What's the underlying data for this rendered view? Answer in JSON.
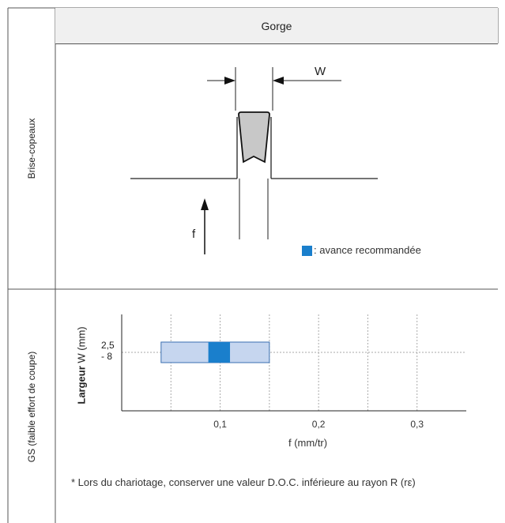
{
  "header": {
    "title": "Gorge"
  },
  "rows": [
    {
      "label": "Brise-copeaux"
    },
    {
      "label": "GS (faible effort de coupe)"
    }
  ],
  "diagram": {
    "width_label": "W",
    "feed_label": "f",
    "legend_text": ": avance recommandée",
    "colors": {
      "insert_fill": "#c8c8c8",
      "recommended": "#1a7fcc",
      "range": "#c6d6ef"
    }
  },
  "chart_data": {
    "type": "bar",
    "orientation": "horizontal",
    "xlabel": "f (mm/tr)",
    "ylabel_bold": "Largeur",
    "ylabel_rest": " W (mm)",
    "x_ticks": [
      "0,1",
      "0,2",
      "0,3"
    ],
    "x_tick_values": [
      0.1,
      0.2,
      0.3
    ],
    "xlim": [
      0,
      0.35
    ],
    "category_label_line1": "2,5",
    "category_label_line2": "- 8",
    "range": [
      0.04,
      0.15
    ],
    "recommended": [
      0.088,
      0.11
    ],
    "grid": true
  },
  "footnote": "* Lors du chariotage, conserver une valeur D.O.C. inférieure au rayon R (rε)"
}
